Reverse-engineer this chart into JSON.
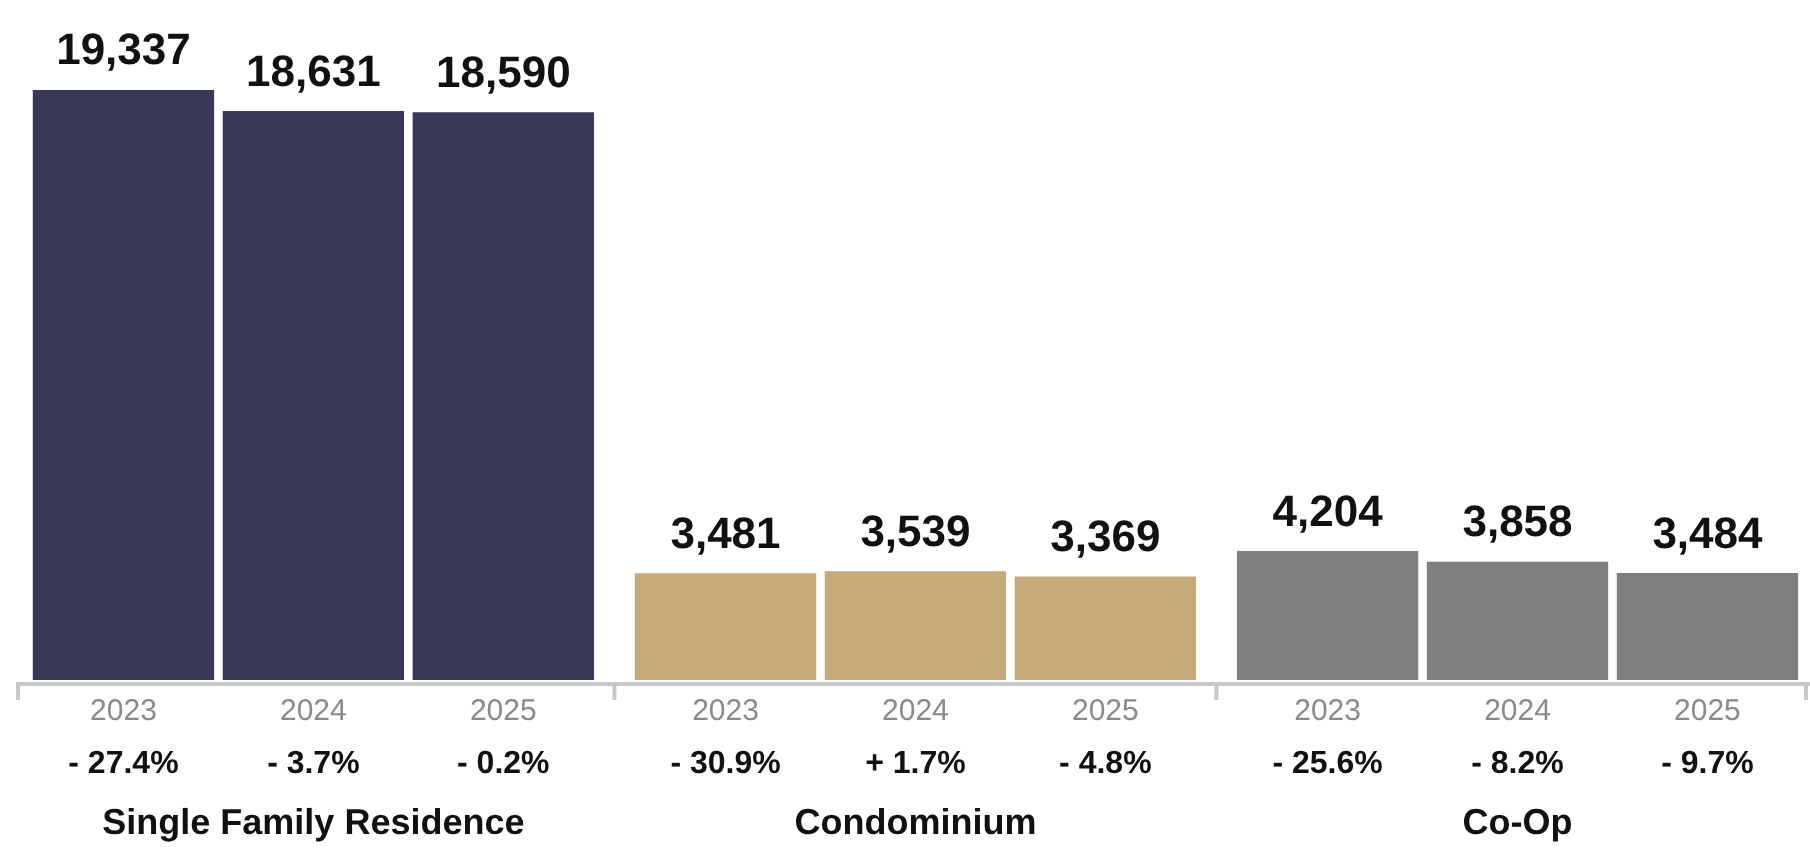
{
  "chart_data": {
    "type": "bar",
    "categories": [
      "2023",
      "2024",
      "2025",
      "2023",
      "2024",
      "2025",
      "2023",
      "2024",
      "2025"
    ],
    "values": [
      19337,
      18631,
      18590,
      3481,
      3539,
      3369,
      4204,
      3858,
      3484
    ],
    "colors": [
      "#3a3859",
      "#3a3859",
      "#3a3859",
      "#c4a979",
      "#c4a979",
      "#c4a979",
      "#7f7f7f",
      "#7f7f7f",
      "#7f7f7f"
    ],
    "value_labels": [
      "19,337",
      "18,631",
      "18,590",
      "3,481",
      "3,539",
      "3,369",
      "4,204",
      "3,858",
      "3,484"
    ],
    "annotations": [
      "- 27.4%",
      "- 3.7%",
      "- 0.2%",
      "- 30.9%",
      "+ 1.7%",
      "- 4.8%",
      "- 25.6%",
      "- 8.2%",
      "- 9.7%",
      "Single Family Residence",
      "Condominium",
      "Co-Op"
    ]
  }
}
